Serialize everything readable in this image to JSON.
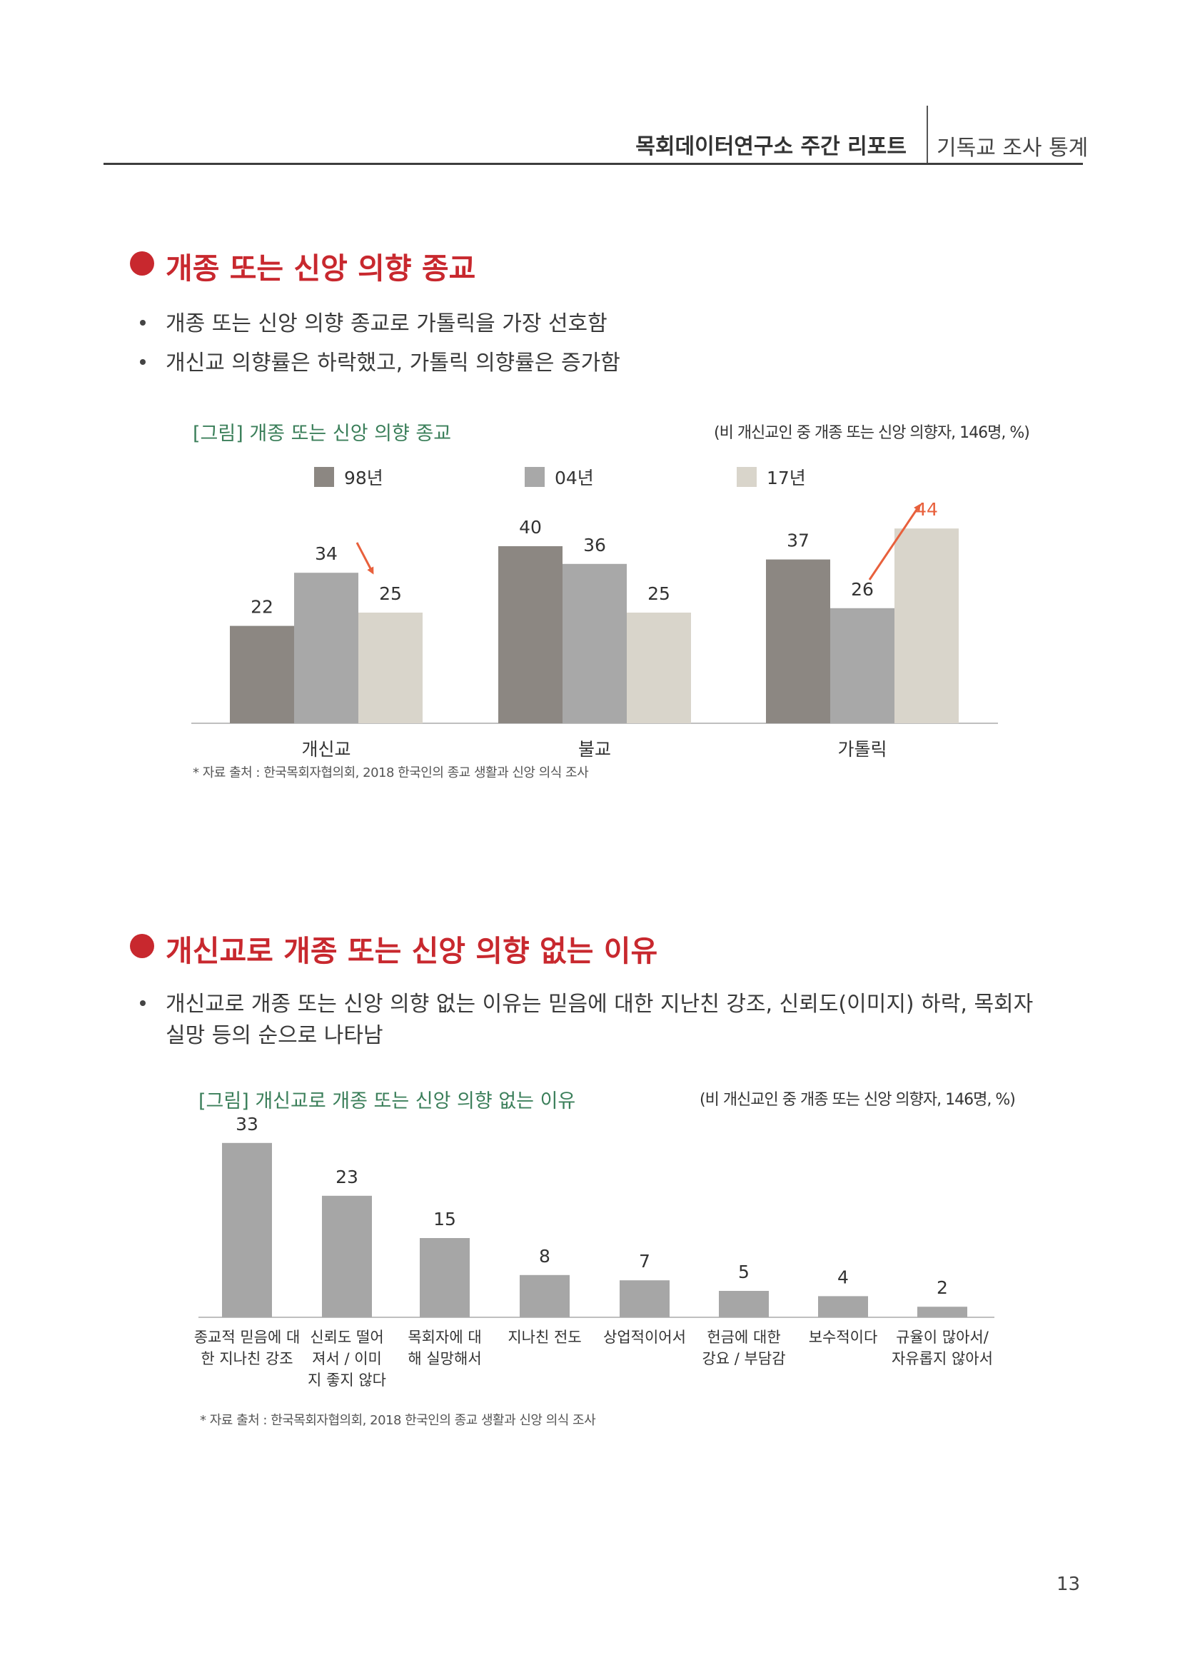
{
  "header": {
    "title": "목회데이터연구소 주간 리포트",
    "subtitle": "기독교 조사 통계"
  },
  "section1": {
    "heading": "개종 또는 신앙 의향 종교",
    "bullets": [
      "개종 또는 신앙 의향 종교로 가톨릭을 가장 선호함",
      "개신교 의향률은 하락했고, 가톨릭 의향률은 증가함"
    ],
    "figure_title": "[그림] 개종 또는 신앙 의향 종교",
    "figure_note": "(비 개신교인 중 개종 또는 신앙 의향자, 146명, %)",
    "source": "* 자료 출처 : 한국목회자협의회, 2018 한국인의 종교 생활과 신앙 의식 조사"
  },
  "section2": {
    "heading": "개신교로 개종 또는 신앙 의향 없는 이유",
    "bullets": [
      "개신교로 개종 또는 신앙 의향 없는 이유는 믿음에 대한 지난친 강조, 신뢰도(이미지) 하락, 목회자 실망 등의 순으로 나타남"
    ],
    "figure_title": "[그림] 개신교로 개종 또는 신앙 의향 없는 이유",
    "figure_note": "(비 개신교인 중 개종 또는 신앙 의향자, 146명, %)",
    "source": "* 자료 출처 : 한국목회자협의회, 2018 한국인의 종교 생활과 신앙 의식 조사"
  },
  "page_number": "13",
  "colors": {
    "accent": "#c8282e",
    "arrow": "#e8603c",
    "figure_title": "#3b7f5a",
    "series_98": "#8c8782",
    "series_04": "#a8a8a8",
    "series_17": "#d9d5cb",
    "bars2": "#a6a6a6"
  },
  "chart_data": [
    {
      "type": "bar",
      "title": "[그림] 개종 또는 신앙 의향 종교",
      "subtitle": "(비 개신교인 중 개종 또는 신앙 의향자, 146명, %)",
      "categories": [
        "개신교",
        "불교",
        "가톨릭"
      ],
      "series": [
        {
          "name": "98년",
          "values": [
            22,
            40,
            37
          ]
        },
        {
          "name": "04년",
          "values": [
            34,
            36,
            26
          ]
        },
        {
          "name": "17년",
          "values": [
            25,
            25,
            44
          ]
        }
      ],
      "ylim": [
        0,
        50
      ],
      "grid": false,
      "legend": "top",
      "highlight": [
        {
          "category": "개신교",
          "from": "04년",
          "to": "17년"
        },
        {
          "category": "가톨릭",
          "from": "04년",
          "to": "17년"
        }
      ]
    },
    {
      "type": "bar",
      "title": "[그림] 개신교로 개종 또는 신앙 의향 없는 이유",
      "subtitle": "(비 개신교인 중 개종 또는 신앙 의향자, 146명, %)",
      "categories": [
        [
          "종교적 믿음에 대",
          "한 지나친 강조"
        ],
        [
          "신뢰도 떨어",
          "져서 / 이미",
          "지 좋지 않다"
        ],
        [
          "목회자에 대",
          "해 실망해서"
        ],
        [
          "지나친 전도"
        ],
        [
          "상업적이어서"
        ],
        [
          "헌금에 대한",
          "강요 / 부담감"
        ],
        [
          "보수적이다"
        ],
        [
          "규율이 많아서/",
          "자유롭지 않아서"
        ]
      ],
      "values": [
        33,
        23,
        15,
        8,
        7,
        5,
        4,
        2
      ],
      "ylim": [
        0,
        40
      ],
      "grid": false
    }
  ]
}
